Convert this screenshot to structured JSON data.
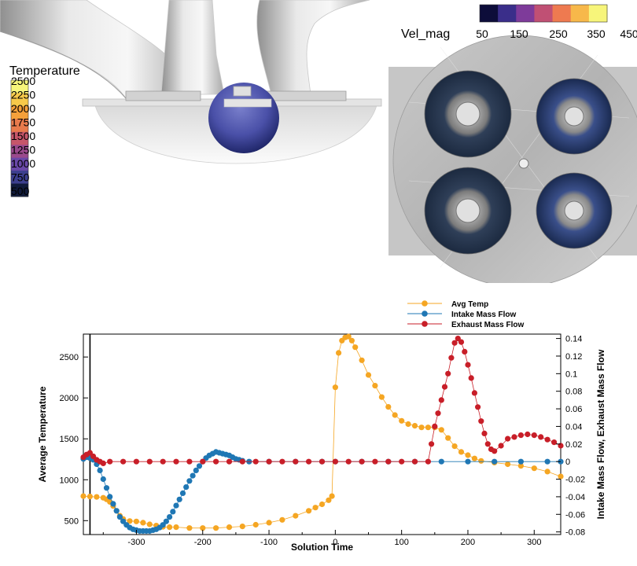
{
  "temperature_colorbar": {
    "title": "Temperature",
    "levels": [
      "2500",
      "2250",
      "2000",
      "1750",
      "1500",
      "1250",
      "1000",
      "750",
      "500"
    ],
    "colors": [
      "#f7f57a",
      "#f7c94a",
      "#f5a03a",
      "#e77a4c",
      "#c6566a",
      "#9a4a8c",
      "#6a48a8",
      "#3c3f8e",
      "#101a3a"
    ]
  },
  "velocity_colorbar": {
    "title": "Vel_mag",
    "levels": [
      "50",
      "150",
      "250",
      "350",
      "450"
    ],
    "colors": [
      "#0d0d3a",
      "#3a2e8a",
      "#7e3b9a",
      "#c05074",
      "#ee7a50",
      "#f7b84a",
      "#f7f57a"
    ]
  },
  "chart_data": {
    "type": "scatter",
    "xlabel": "Solution Time",
    "ylabel": "Average Temperature",
    "y2label": "Intake Mass Flow, Exhaust Mass Flow",
    "xlim": [
      -380,
      340
    ],
    "ylim": [
      330,
      2780
    ],
    "y2lim": [
      -0.083,
      0.145
    ],
    "xticks": [
      "-300",
      "-200",
      "-100",
      "0",
      "100",
      "200",
      "300"
    ],
    "yticks": [
      "500",
      "1000",
      "1500",
      "2000",
      "2500"
    ],
    "y2ticks": [
      "0.14",
      "0.12",
      "0.1",
      "0.08",
      "0.06",
      "0.04",
      "0.02",
      "0",
      "-0.02",
      "-0.04",
      "-0.06",
      "-0.08"
    ],
    "cursor_x": -370,
    "legend": [
      "Avg Temp",
      "Intake Mass Flow",
      "Exhaust Mass Flow"
    ],
    "legend_position": "top-right",
    "series": [
      {
        "name": "Avg Temp",
        "axis": "left",
        "color": "#f5a623",
        "x": [
          -380,
          -370,
          -360,
          -350,
          -345,
          -340,
          -335,
          -330,
          -325,
          -320,
          -310,
          -300,
          -290,
          -280,
          -270,
          -260,
          -250,
          -240,
          -220,
          -200,
          -180,
          -160,
          -140,
          -120,
          -100,
          -80,
          -60,
          -40,
          -30,
          -20,
          -10,
          -5,
          0,
          5,
          10,
          15,
          20,
          25,
          30,
          40,
          50,
          60,
          70,
          80,
          90,
          100,
          110,
          120,
          130,
          140,
          150,
          160,
          170,
          180,
          190,
          200,
          210,
          220,
          240,
          260,
          280,
          300,
          320,
          340
        ],
        "y": [
          800,
          795,
          790,
          780,
          760,
          730,
          680,
          620,
          560,
          520,
          495,
          490,
          475,
          455,
          440,
          425,
          420,
          420,
          410,
          410,
          410,
          420,
          430,
          450,
          475,
          510,
          560,
          620,
          660,
          700,
          750,
          800,
          2130,
          2550,
          2700,
          2740,
          2750,
          2700,
          2620,
          2460,
          2280,
          2150,
          2010,
          1890,
          1790,
          1720,
          1680,
          1660,
          1640,
          1640,
          1640,
          1610,
          1510,
          1410,
          1340,
          1300,
          1260,
          1230,
          1210,
          1190,
          1170,
          1140,
          1100,
          1040
        ]
      },
      {
        "name": "Intake Mass Flow",
        "axis": "right",
        "color": "#1f77b4",
        "x": [
          -380,
          -375,
          -370,
          -365,
          -360,
          -355,
          -350,
          -345,
          -340,
          -335,
          -330,
          -325,
          -320,
          -315,
          -310,
          -305,
          -300,
          -295,
          -290,
          -285,
          -280,
          -275,
          -270,
          -265,
          -260,
          -255,
          -250,
          -245,
          -240,
          -235,
          -230,
          -225,
          -220,
          -215,
          -210,
          -205,
          -200,
          -195,
          -190,
          -185,
          -180,
          -175,
          -170,
          -165,
          -160,
          -155,
          -150,
          -145,
          -140,
          -130,
          -100,
          -60,
          -20,
          0,
          40,
          80,
          120,
          160,
          200,
          240,
          280,
          320,
          340
        ],
        "y": [
          0.003,
          0.005,
          0.004,
          0.002,
          -0.003,
          -0.01,
          -0.02,
          -0.03,
          -0.04,
          -0.048,
          -0.056,
          -0.063,
          -0.068,
          -0.072,
          -0.075,
          -0.077,
          -0.078,
          -0.079,
          -0.079,
          -0.079,
          -0.079,
          -0.078,
          -0.077,
          -0.075,
          -0.072,
          -0.068,
          -0.063,
          -0.057,
          -0.05,
          -0.043,
          -0.036,
          -0.029,
          -0.022,
          -0.016,
          -0.01,
          -0.005,
          0.0,
          0.004,
          0.007,
          0.009,
          0.011,
          0.01,
          0.009,
          0.008,
          0.007,
          0.005,
          0.003,
          0.002,
          0.001,
          0,
          0,
          0,
          0,
          0,
          0,
          0,
          0,
          0,
          0,
          0,
          0,
          0,
          0
        ]
      },
      {
        "name": "Exhaust Mass Flow",
        "axis": "right",
        "color": "#c81e28",
        "x": [
          -380,
          -375,
          -370,
          -365,
          -360,
          -355,
          -350,
          -340,
          -320,
          -300,
          -280,
          -260,
          -240,
          -220,
          -200,
          -180,
          -160,
          -140,
          -120,
          -100,
          -80,
          -60,
          -40,
          -20,
          0,
          20,
          40,
          60,
          80,
          100,
          120,
          140,
          145,
          150,
          155,
          160,
          165,
          170,
          175,
          180,
          185,
          190,
          195,
          200,
          205,
          210,
          215,
          220,
          225,
          230,
          235,
          240,
          250,
          260,
          270,
          280,
          290,
          300,
          310,
          320,
          330,
          340
        ],
        "y": [
          0.005,
          0.008,
          0.01,
          0.006,
          0.002,
          0.0,
          -0.002,
          0.0,
          0,
          0,
          0,
          0,
          0,
          0,
          0,
          0,
          0,
          0,
          0,
          0,
          0,
          0,
          0,
          0,
          0,
          0,
          0,
          0,
          0,
          0,
          0,
          0.0,
          0.02,
          0.04,
          0.055,
          0.07,
          0.085,
          0.1,
          0.118,
          0.135,
          0.14,
          0.136,
          0.125,
          0.11,
          0.095,
          0.078,
          0.062,
          0.046,
          0.032,
          0.02,
          0.014,
          0.012,
          0.018,
          0.026,
          0.028,
          0.03,
          0.031,
          0.03,
          0.028,
          0.025,
          0.022,
          0.018
        ]
      }
    ]
  }
}
